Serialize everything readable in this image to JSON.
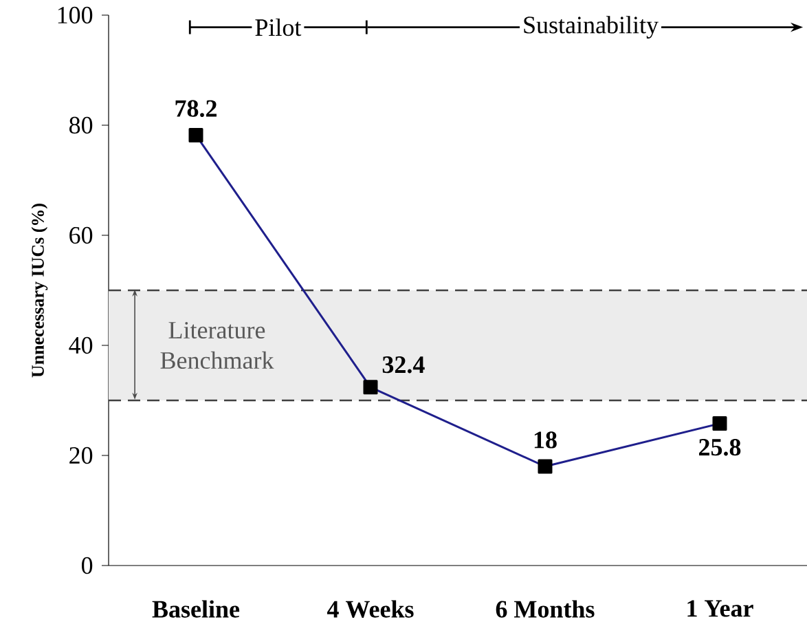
{
  "chart_data": {
    "type": "line",
    "ylabel": "Unnecessary IUCs (%)",
    "categories": [
      "Baseline",
      "4 Weeks",
      "6 Months",
      "1 Year"
    ],
    "series": [
      {
        "color": "#1f1f8c",
        "values": [
          78.2,
          32.4,
          18,
          25.8
        ]
      }
    ],
    "marker": "square",
    "line_style": "solid",
    "data_labels": true,
    "grid": false,
    "ylim": [
      0,
      100
    ],
    "yticks": [
      0,
      20,
      40,
      60,
      80,
      100
    ],
    "bands": [
      {
        "axis": "y",
        "from": 30,
        "to": 50,
        "label": "Literature Benchmark",
        "color": "#ececec"
      }
    ],
    "ref_lines": [
      {
        "axis": "y",
        "value": 30,
        "color": "#404040",
        "line_style": "dashed"
      },
      {
        "axis": "y",
        "value": 50,
        "color": "#404040",
        "line_style": "dashed"
      }
    ],
    "annotations": [
      "Pilot",
      "Sustainability"
    ]
  }
}
